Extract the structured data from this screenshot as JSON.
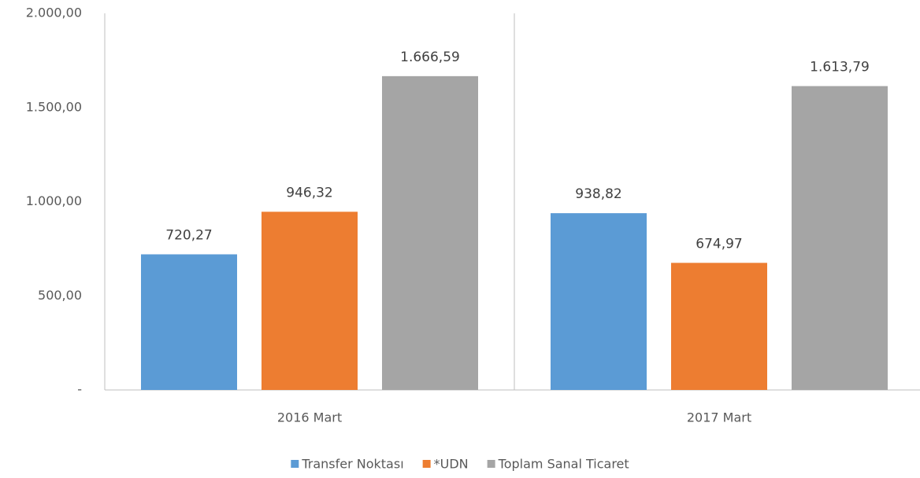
{
  "chart_data": {
    "type": "bar",
    "categories": [
      "2016 Mart",
      "2017 Mart"
    ],
    "series": [
      {
        "name": "Transfer Noktası",
        "color": "#5b9bd5",
        "values": [
          720.27,
          938.82
        ],
        "value_labels": [
          "720,27",
          "938,82"
        ]
      },
      {
        "name": "*UDN",
        "color": "#ed7d31",
        "values": [
          946.32,
          674.97
        ],
        "value_labels": [
          "946,32",
          "674,97"
        ]
      },
      {
        "name": "Toplam Sanal Ticaret",
        "color": "#a5a5a5",
        "values": [
          1666.59,
          1613.79
        ],
        "value_labels": [
          "1.666,59",
          "1.613,79"
        ]
      }
    ],
    "ylim": [
      0,
      2000
    ],
    "yticks": [
      {
        "value": 0,
        "label": "-"
      },
      {
        "value": 500,
        "label": "500,00"
      },
      {
        "value": 1000,
        "label": "1.000,00"
      },
      {
        "value": 1500,
        "label": "1.500,00"
      },
      {
        "value": 2000,
        "label": "2.000,00"
      }
    ],
    "legend": "bottom"
  }
}
